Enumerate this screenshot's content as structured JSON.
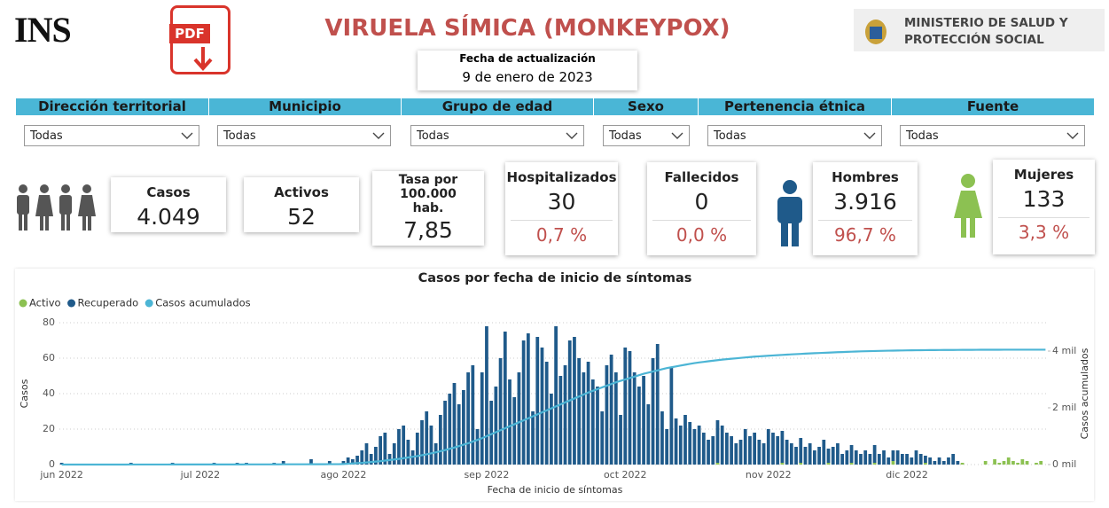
{
  "header": {
    "logo": "INS",
    "pdf_label": "PDF",
    "title": "VIRUELA SÍMICA (MONKEYPOX)",
    "ministry": [
      "MINISTERIO DE SALUD Y",
      "PROTECCIÓN SOCIAL"
    ]
  },
  "update": {
    "label": "Fecha de actualización",
    "date": "9 de enero de 2023"
  },
  "filters": [
    {
      "label": "Dirección territorial",
      "selected": "Todas"
    },
    {
      "label": "Municipio",
      "selected": "Todas"
    },
    {
      "label": "Grupo de edad",
      "selected": "Todas"
    },
    {
      "label": "Sexo",
      "selected": "Todas"
    },
    {
      "label": "Pertenencia étnica",
      "selected": "Todas"
    },
    {
      "label": "Fuente",
      "selected": "Todas"
    }
  ],
  "kpis": [
    {
      "label": "Casos",
      "value": "4.049"
    },
    {
      "label": "Activos",
      "value": "52"
    },
    {
      "label": "Tasa por 100.000 hab.",
      "value": "7,85"
    },
    {
      "label": "Hospitalizados",
      "value": "30",
      "percent": "0,7 %"
    },
    {
      "label": "Fallecidos",
      "value": "0",
      "percent": "0,0 %"
    },
    {
      "label": "Hombres",
      "value": "3.916",
      "percent": "96,7 %"
    },
    {
      "label": "Mujeres",
      "value": "133",
      "percent": "3,3 %"
    }
  ],
  "chart_data": {
    "type": "stacked-bar-line",
    "title": "Casos por fecha de inicio de síntomas",
    "x_label": "Fecha de inicio de síntomas",
    "y_label": "Casos",
    "y2_label": "Casos acumulados",
    "categories": [
      "jun 2022",
      null,
      null,
      null,
      null,
      null,
      null,
      null,
      null,
      null,
      null,
      null,
      null,
      null,
      null,
      null,
      null,
      null,
      null,
      null,
      null,
      null,
      null,
      null,
      null,
      null,
      null,
      null,
      null,
      null,
      "jul 2022",
      null,
      null,
      null,
      null,
      null,
      null,
      null,
      null,
      null,
      null,
      null,
      null,
      null,
      null,
      null,
      null,
      null,
      null,
      null,
      null,
      null,
      null,
      null,
      null,
      null,
      null,
      null,
      null,
      null,
      null,
      "ago 2022",
      null,
      null,
      null,
      null,
      null,
      null,
      null,
      null,
      null,
      null,
      null,
      null,
      null,
      null,
      null,
      null,
      null,
      null,
      null,
      null,
      null,
      null,
      null,
      null,
      null,
      null,
      null,
      null,
      null,
      null,
      "sep 2022",
      null,
      null,
      null,
      null,
      null,
      null,
      null,
      null,
      null,
      null,
      null,
      null,
      null,
      null,
      null,
      null,
      null,
      null,
      null,
      null,
      null,
      null,
      null,
      null,
      null,
      null,
      null,
      null,
      null,
      "oct 2022",
      null,
      null,
      null,
      null,
      null,
      null,
      null,
      null,
      null,
      null,
      null,
      null,
      null,
      null,
      null,
      null,
      null,
      null,
      null,
      null,
      null,
      null,
      null,
      null,
      null,
      null,
      null,
      null,
      null,
      null,
      "nov 2022",
      null,
      null,
      null,
      null,
      null,
      null,
      null,
      null,
      null,
      null,
      null,
      null,
      null,
      null,
      null,
      null,
      null,
      null,
      null,
      null,
      null,
      null,
      null,
      null,
      null,
      null,
      null,
      null,
      null,
      "dic 2022",
      null,
      null,
      null,
      null,
      null,
      null,
      null,
      null,
      null,
      null,
      null,
      null,
      null,
      null,
      null,
      null,
      null,
      null,
      null,
      null,
      null,
      null,
      null,
      null,
      null,
      null,
      null,
      null,
      null,
      null
    ],
    "series": [
      {
        "name": "Activo",
        "color": "#8cc152",
        "values": [
          0,
          0,
          0,
          0,
          0,
          0,
          0,
          0,
          0,
          0,
          0,
          0,
          0,
          0,
          0,
          0,
          0,
          0,
          0,
          0,
          0,
          0,
          0,
          0,
          0,
          0,
          0,
          0,
          0,
          0,
          0,
          0,
          0,
          0,
          0,
          0,
          0,
          0,
          0,
          0,
          0,
          0,
          0,
          0,
          0,
          0,
          0,
          0,
          0,
          0,
          0,
          0,
          0,
          0,
          0,
          0,
          0,
          0,
          0,
          0,
          0,
          0,
          0,
          0,
          0,
          0,
          0,
          0,
          0,
          0,
          0,
          0,
          0,
          0,
          0,
          0,
          0,
          0,
          0,
          0,
          0,
          0,
          0,
          0,
          0,
          0,
          0,
          0,
          0,
          0,
          0,
          0,
          0,
          0,
          0,
          0,
          0,
          0,
          0,
          0,
          0,
          0,
          0,
          0,
          0,
          0,
          0,
          0,
          0,
          0,
          0,
          0,
          0,
          0,
          0,
          0,
          0,
          0,
          0,
          0,
          0,
          0,
          0,
          0,
          0,
          0,
          0,
          0,
          0,
          0,
          0,
          0,
          0,
          0,
          0,
          0,
          0,
          0,
          0,
          0,
          0,
          0,
          1,
          0,
          0,
          0,
          0,
          0,
          0,
          0,
          0,
          0,
          0,
          0,
          0,
          0,
          1,
          0,
          0,
          0,
          1,
          0,
          0,
          0,
          0,
          0,
          1,
          0,
          0,
          0,
          0,
          1,
          0,
          0,
          0,
          0,
          1,
          0,
          0,
          0,
          2,
          0,
          0,
          0,
          0,
          0,
          0,
          1,
          0,
          0,
          0,
          0,
          0,
          0,
          0,
          1,
          0,
          0,
          0,
          0,
          2,
          0,
          3,
          1,
          2,
          4,
          2,
          1,
          3,
          2,
          0,
          1,
          2,
          0
        ]
      },
      {
        "name": "Recuperado",
        "color": "#1f5a8a",
        "values": [
          1,
          0,
          0,
          0,
          0,
          0,
          0,
          0,
          0,
          0,
          0,
          0,
          0,
          0,
          0,
          1,
          0,
          0,
          0,
          0,
          0,
          0,
          0,
          0,
          1,
          0,
          0,
          0,
          0,
          0,
          0,
          0,
          0,
          1,
          0,
          0,
          0,
          0,
          1,
          0,
          1,
          0,
          0,
          0,
          0,
          0,
          1,
          0,
          2,
          0,
          0,
          0,
          0,
          0,
          3,
          0,
          0,
          0,
          2,
          0,
          0,
          2,
          4,
          3,
          5,
          8,
          12,
          6,
          10,
          16,
          18,
          6,
          12,
          20,
          22,
          14,
          8,
          18,
          25,
          30,
          22,
          12,
          28,
          36,
          40,
          46,
          34,
          42,
          52,
          56,
          20,
          52,
          78,
          36,
          44,
          60,
          75,
          48,
          38,
          52,
          70,
          74,
          30,
          72,
          66,
          58,
          40,
          78,
          50,
          56,
          70,
          72,
          60,
          52,
          58,
          48,
          44,
          30,
          56,
          62,
          52,
          28,
          66,
          64,
          52,
          44,
          50,
          34,
          60,
          68,
          30,
          20,
          55,
          26,
          22,
          28,
          24,
          20,
          22,
          18,
          14,
          16,
          24,
          22,
          18,
          16,
          12,
          14,
          20,
          16,
          18,
          14,
          12,
          20,
          18,
          16,
          18,
          14,
          12,
          10,
          14,
          10,
          12,
          8,
          10,
          14,
          8,
          10,
          12,
          6,
          8,
          10,
          8,
          6,
          8,
          6,
          10,
          6,
          8,
          4,
          6,
          8,
          6,
          6,
          4,
          8,
          6,
          4,
          4,
          2,
          4,
          2,
          4,
          6,
          2,
          0,
          0,
          0,
          0,
          0,
          0,
          0,
          0,
          0,
          0,
          0,
          0,
          0,
          0,
          0,
          0,
          0,
          0,
          0
        ]
      },
      {
        "name": "Casos acumulados",
        "color": "#4cb5d5",
        "axis": "y2",
        "values": [
          1,
          1,
          1,
          1,
          1,
          1,
          1,
          1,
          1,
          1,
          1,
          1,
          1,
          1,
          1,
          2,
          2,
          2,
          2,
          2,
          2,
          2,
          2,
          2,
          3,
          3,
          3,
          3,
          3,
          3,
          3,
          3,
          3,
          4,
          4,
          4,
          4,
          4,
          5,
          5,
          6,
          6,
          6,
          6,
          6,
          6,
          7,
          7,
          9,
          9,
          9,
          9,
          9,
          9,
          12,
          12,
          12,
          12,
          14,
          14,
          14,
          20,
          30,
          40,
          50,
          60,
          75,
          90,
          105,
          120,
          140,
          160,
          180,
          200,
          225,
          250,
          275,
          300,
          330,
          360,
          395,
          430,
          470,
          510,
          555,
          600,
          650,
          700,
          750,
          810,
          870,
          930,
          1000,
          1070,
          1140,
          1210,
          1280,
          1350,
          1420,
          1490,
          1560,
          1630,
          1700,
          1770,
          1840,
          1910,
          1980,
          2050,
          2120,
          2190,
          2260,
          2330,
          2400,
          2470,
          2540,
          2600,
          2660,
          2720,
          2780,
          2840,
          2900,
          2950,
          3000,
          3050,
          3100,
          3150,
          3200,
          3240,
          3280,
          3320,
          3360,
          3400,
          3430,
          3460,
          3490,
          3520,
          3550,
          3575,
          3600,
          3620,
          3640,
          3660,
          3680,
          3700,
          3715,
          3730,
          3745,
          3760,
          3775,
          3790,
          3805,
          3815,
          3825,
          3835,
          3845,
          3855,
          3865,
          3875,
          3885,
          3893,
          3901,
          3909,
          3917,
          3925,
          3932,
          3939,
          3946,
          3953,
          3960,
          3966,
          3972,
          3978,
          3984,
          3990,
          3994,
          3998,
          4002,
          4006,
          4010,
          4013,
          4016,
          4019,
          4022,
          4025,
          4027,
          4029,
          4031,
          4033,
          4035,
          4036,
          4037,
          4038,
          4039,
          4040,
          4041,
          4042,
          4043,
          4044,
          4045,
          4046,
          4046,
          4047,
          4047,
          4047,
          4048,
          4048,
          4048,
          4048,
          4049,
          4049,
          4049,
          4049,
          4049,
          4049
        ]
      }
    ],
    "ylim": [
      0,
      80
    ],
    "yticks": [
      0,
      20,
      40,
      60,
      80
    ],
    "y2lim": [
      0,
      5000
    ],
    "y2ticks": [
      {
        "value": 0,
        "label": "0 mil"
      },
      {
        "value": 2000,
        "label": "2 mil"
      },
      {
        "value": 4000,
        "label": "4 mil"
      }
    ],
    "grid": true,
    "legend": "top-left"
  }
}
